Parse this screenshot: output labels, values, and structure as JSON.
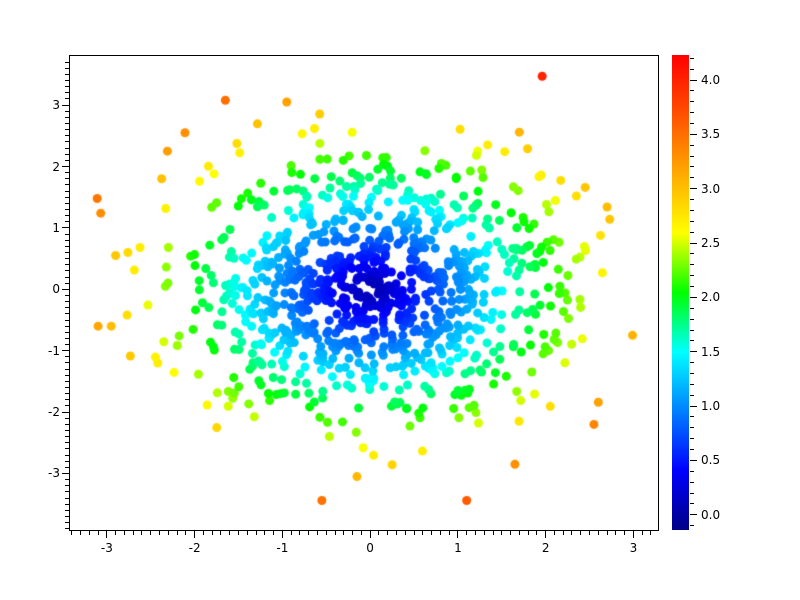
{
  "colors": {
    "background": "#ffffff",
    "frame": "#000000",
    "tick": "#000000",
    "label_text": "#000000"
  },
  "chart_data": {
    "type": "scatter",
    "title": "",
    "xlabel": "",
    "ylabel": "",
    "grid": false,
    "xlim": [
      -3.42,
      3.28
    ],
    "ylim": [
      -3.92,
      3.8
    ],
    "xticks": [
      -3,
      -2,
      -1,
      0,
      1,
      2,
      3
    ],
    "xtick_labels": [
      "-3",
      "-2",
      "-1",
      "0",
      "1",
      "2",
      "3"
    ],
    "yticks": [
      3,
      2,
      1,
      0,
      -1,
      -2,
      -3
    ],
    "ytick_labels": [
      "3",
      "2",
      "1",
      "0",
      "-1",
      "-2",
      "-3"
    ],
    "minor_tick_step": 0.1,
    "marker_diameter_px": 9,
    "n_points": 1000,
    "point_distribution": {
      "kind": "gaussian",
      "mean": [
        0,
        0
      ],
      "sigma": 1.08,
      "seed": 42,
      "core_radius_cap": 3.0
    },
    "color_by": "radius_from_origin",
    "colormap": {
      "name": "jet",
      "stops": [
        [
          0.0,
          "#000085"
        ],
        [
          0.125,
          "#0000ff"
        ],
        [
          0.375,
          "#00ffff"
        ],
        [
          0.5,
          "#00ff00"
        ],
        [
          0.625,
          "#ffff00"
        ],
        [
          0.75,
          "#ffaa00"
        ],
        [
          0.875,
          "#ff5000"
        ],
        [
          1.0,
          "#ff0000"
        ]
      ]
    },
    "colorbar": {
      "position": "right",
      "vmin": -0.14,
      "vmax": 4.23,
      "tick_values": [
        4.0,
        3.5,
        3.0,
        2.5,
        2.0,
        1.5,
        1.0,
        0.5,
        0.0
      ],
      "tick_labels": [
        "4.0",
        "3.5",
        "3.0",
        "2.5",
        "2.0",
        "1.5",
        "1.0",
        "0.5",
        "0.0"
      ],
      "minor_step": 0.1
    },
    "outliers": [
      [
        1.96,
        3.47
      ],
      [
        -1.65,
        3.08
      ],
      [
        -0.95,
        3.05
      ],
      [
        -2.11,
        2.55
      ],
      [
        -2.31,
        2.25
      ],
      [
        1.7,
        2.56
      ],
      [
        1.95,
        1.86
      ],
      [
        2.45,
        1.66
      ],
      [
        2.35,
        1.52
      ],
      [
        2.7,
        1.34
      ],
      [
        2.73,
        1.14
      ],
      [
        -3.11,
        1.48
      ],
      [
        -3.07,
        1.24
      ],
      [
        -2.76,
        0.6
      ],
      [
        -2.9,
        0.55
      ],
      [
        -3.1,
        -0.6
      ],
      [
        -2.95,
        -0.6
      ],
      [
        2.99,
        -0.75
      ],
      [
        2.6,
        -1.84
      ],
      [
        2.55,
        -2.2
      ],
      [
        1.65,
        -2.85
      ],
      [
        1.1,
        -3.44
      ],
      [
        -0.55,
        -3.44
      ],
      [
        -0.15,
        -3.05
      ]
    ]
  }
}
